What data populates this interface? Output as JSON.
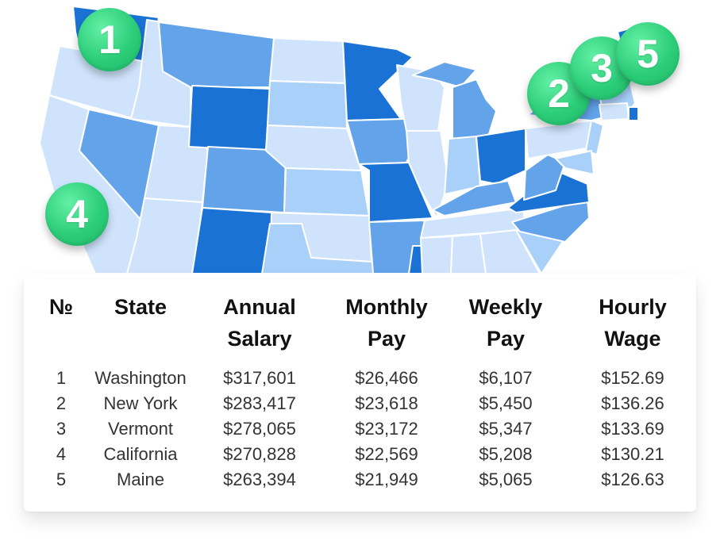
{
  "badges": [
    "1",
    "2",
    "3",
    "4",
    "5"
  ],
  "colors": {
    "darkest": "#1a73d4",
    "dark": "#62a3ea",
    "medium": "#a9d0f9",
    "light": "#cfe4fc",
    "badge": "#2ccd79"
  },
  "table": {
    "headers": {
      "rank": "№",
      "state": "State",
      "annual_1": "Annual",
      "annual_2": "Salary",
      "monthly_1": "Monthly",
      "monthly_2": "Pay",
      "weekly_1": "Weekly",
      "weekly_2": "Pay",
      "hourly_1": "Hourly",
      "hourly_2": "Wage"
    },
    "rows": [
      {
        "rank": "1",
        "state": "Washington",
        "annual": "$317,601",
        "monthly": "$26,466",
        "weekly": "$6,107",
        "hourly": "$152.69"
      },
      {
        "rank": "2",
        "state": "New York",
        "annual": "$283,417",
        "monthly": "$23,618",
        "weekly": "$5,450",
        "hourly": "$136.26"
      },
      {
        "rank": "3",
        "state": "Vermont",
        "annual": "$278,065",
        "monthly": "$23,172",
        "weekly": "$5,347",
        "hourly": "$133.69"
      },
      {
        "rank": "4",
        "state": "California",
        "annual": "$270,828",
        "monthly": "$22,569",
        "weekly": "$5,208",
        "hourly": "$130.21"
      },
      {
        "rank": "5",
        "state": "Maine",
        "annual": "$263,394",
        "monthly": "$21,949",
        "weekly": "$5,065",
        "hourly": "$126.63"
      }
    ]
  }
}
